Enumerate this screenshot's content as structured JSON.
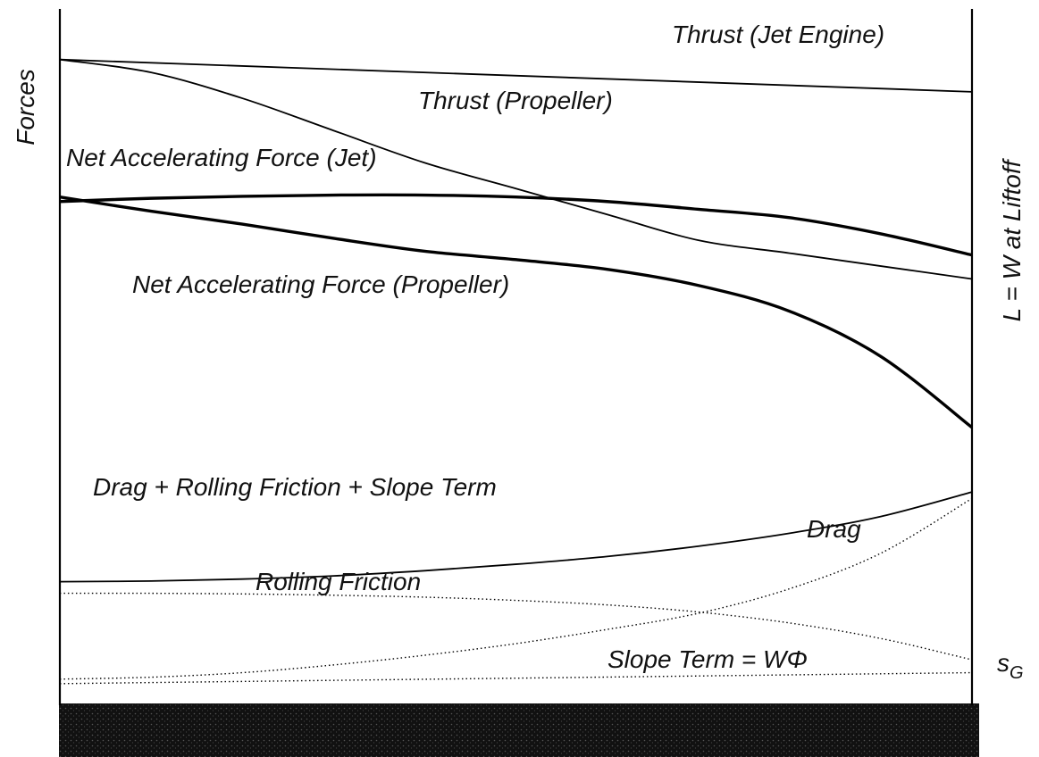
{
  "chart_data": {
    "type": "line",
    "title": "",
    "ylabel": "Forces",
    "right_label": "L = W at Liftoff",
    "x_end_label": "s",
    "x_end_label_sub": "G",
    "grid": false,
    "xlim": [
      0,
      1
    ],
    "ylim": [
      0,
      1
    ],
    "series": [
      {
        "key": "thrust_jet",
        "label": "Thrust (Jet Engine)",
        "style": "solid",
        "x": [
          0,
          1
        ],
        "y": [
          0.97,
          0.92
        ]
      },
      {
        "key": "thrust_prop",
        "label": "Thrust (Propeller)",
        "style": "solid",
        "x": [
          0,
          0.1,
          0.2,
          0.3,
          0.4,
          0.5,
          0.6,
          0.7,
          0.8,
          0.9,
          1
        ],
        "y": [
          0.97,
          0.95,
          0.91,
          0.86,
          0.81,
          0.77,
          0.73,
          0.69,
          0.67,
          0.65,
          0.63
        ]
      },
      {
        "key": "net_jet",
        "label": "Net Accelerating Force (Jet)",
        "style": "bold",
        "x": [
          0,
          0.1,
          0.2,
          0.3,
          0.4,
          0.5,
          0.6,
          0.7,
          0.8,
          0.9,
          1
        ],
        "y": [
          0.75,
          0.755,
          0.758,
          0.76,
          0.76,
          0.757,
          0.75,
          0.738,
          0.725,
          0.7,
          0.667
        ]
      },
      {
        "key": "net_prop",
        "label": "Net Accelerating Force (Propeller)",
        "style": "bold",
        "x": [
          0,
          0.1,
          0.2,
          0.3,
          0.4,
          0.5,
          0.6,
          0.7,
          0.8,
          0.9,
          1
        ],
        "y": [
          0.757,
          0.735,
          0.715,
          0.693,
          0.673,
          0.66,
          0.645,
          0.62,
          0.58,
          0.51,
          0.4
        ]
      },
      {
        "key": "drag_rf_slope",
        "label": "Drag + Rolling Friction + Slope Term",
        "style": "solid",
        "x": [
          0,
          0.1,
          0.2,
          0.3,
          0.4,
          0.5,
          0.6,
          0.7,
          0.8,
          0.9,
          1
        ],
        "y": [
          0.161,
          0.162,
          0.165,
          0.17,
          0.178,
          0.188,
          0.2,
          0.216,
          0.236,
          0.262,
          0.3
        ]
      },
      {
        "key": "drag",
        "label": "Drag",
        "style": "dotted",
        "x": [
          0,
          0.1,
          0.2,
          0.3,
          0.4,
          0.5,
          0.6,
          0.7,
          0.8,
          0.9,
          1
        ],
        "y": [
          0.01,
          0.013,
          0.02,
          0.032,
          0.047,
          0.065,
          0.087,
          0.112,
          0.15,
          0.205,
          0.29
        ]
      },
      {
        "key": "rolling_friction",
        "label": "Rolling Friction",
        "style": "dotted",
        "x": [
          0,
          0.1,
          0.2,
          0.3,
          0.4,
          0.5,
          0.6,
          0.7,
          0.8,
          0.9,
          1
        ],
        "y": [
          0.143,
          0.143,
          0.142,
          0.14,
          0.137,
          0.132,
          0.125,
          0.114,
          0.097,
          0.073,
          0.04
        ]
      },
      {
        "key": "slope_term",
        "label": "Slope Term = WΦ",
        "style": "dotted",
        "x": [
          0,
          1
        ],
        "y": [
          0.003,
          0.02
        ]
      }
    ]
  }
}
